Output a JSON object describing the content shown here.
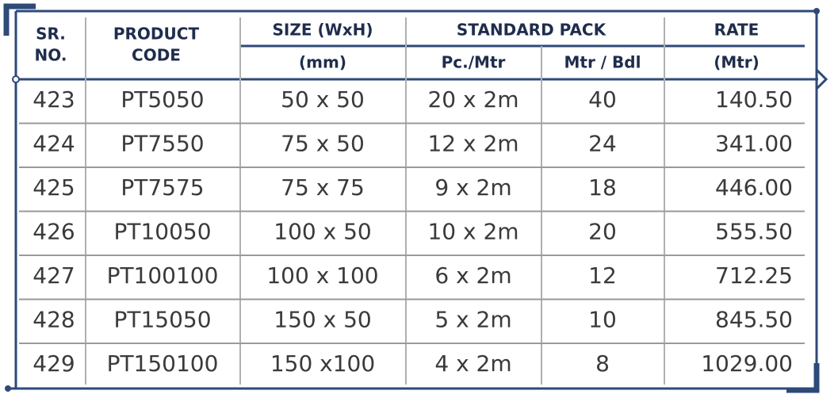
{
  "header": {
    "sr": [
      "SR.",
      "NO."
    ],
    "product": [
      "PRODUCT",
      "CODE"
    ],
    "size": "SIZE (WxH)",
    "size_unit": "(mm)",
    "pack": "STANDARD PACK",
    "pack_cols": [
      "Pc./Mtr",
      "Mtr / Bdl"
    ],
    "rate": "RATE",
    "rate_unit": "(Mtr)"
  },
  "table": {
    "rows": [
      [
        "423",
        "PT5050",
        "50 x 50",
        "20 x 2m",
        "40",
        "140.50"
      ],
      [
        "424",
        "PT7550",
        "75 x 50",
        "12 x 2m",
        "24",
        "341.00"
      ],
      [
        "425",
        "PT7575",
        "75 x 75",
        "9 x 2m",
        "18",
        "446.00"
      ],
      [
        "426",
        "PT10050",
        "100 x 50",
        "10 x 2m",
        "20",
        "555.50"
      ],
      [
        "427",
        "PT100100",
        "100 x 100",
        "6 x 2m",
        "12",
        "712.25"
      ],
      [
        "428",
        "PT15050",
        "150 x 50",
        "5 x 2m",
        "10",
        "845.50"
      ],
      [
        "429",
        "PT150100",
        "150 x100",
        "4 x 2m",
        "8",
        "1029.00"
      ]
    ]
  }
}
